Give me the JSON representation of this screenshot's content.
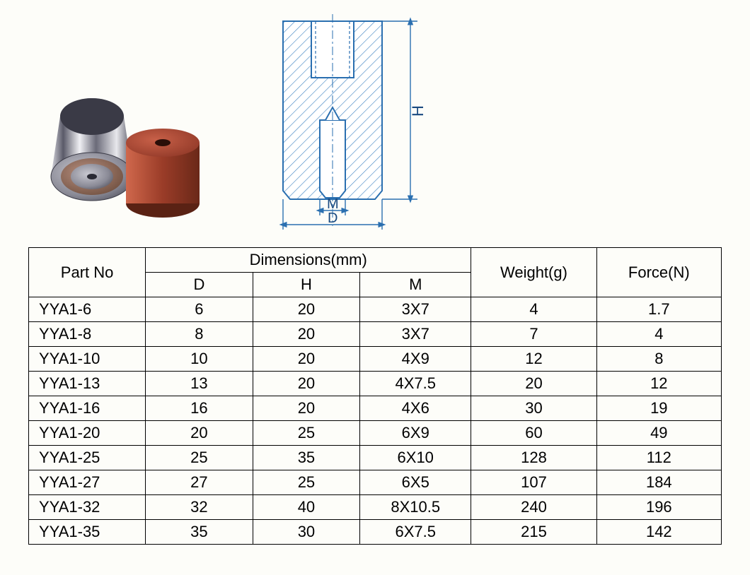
{
  "diagram": {
    "labels": {
      "H": "H",
      "M": "M",
      "D": "D"
    },
    "colors": {
      "outline": "#2a6fb0",
      "hatch": "#3a80c0",
      "fill_light": "#e8f0f8",
      "dim_line": "#2a6fb0"
    }
  },
  "photo": {
    "colors": {
      "steel_light": "#e8e8ec",
      "steel_dark": "#4a4a58",
      "steel_face": "#a0a0ac",
      "red_light": "#c05038",
      "red_dark": "#8a3424",
      "red_hole": "#3a1812"
    }
  },
  "table": {
    "headers": {
      "part": "Part No",
      "dims": "Dimensions(mm)",
      "D": "D",
      "H": "H",
      "M": "M",
      "weight": "Weight(g)",
      "force": "Force(N)"
    },
    "rows": [
      {
        "part": "YYA1-6",
        "D": "6",
        "H": "20",
        "M": "3X7",
        "weight": "4",
        "force": "1.7"
      },
      {
        "part": "YYA1-8",
        "D": "8",
        "H": "20",
        "M": "3X7",
        "weight": "7",
        "force": "4"
      },
      {
        "part": "YYA1-10",
        "D": "10",
        "H": "20",
        "M": "4X9",
        "weight": "12",
        "force": "8"
      },
      {
        "part": "YYA1-13",
        "D": "13",
        "H": "20",
        "M": "4X7.5",
        "weight": "20",
        "force": "12"
      },
      {
        "part": "YYA1-16",
        "D": "16",
        "H": "20",
        "M": "4X6",
        "weight": "30",
        "force": "19"
      },
      {
        "part": "YYA1-20",
        "D": "20",
        "H": "25",
        "M": "6X9",
        "weight": "60",
        "force": "49"
      },
      {
        "part": "YYA1-25",
        "D": "25",
        "H": "35",
        "M": "6X10",
        "weight": "128",
        "force": "112"
      },
      {
        "part": "YYA1-27",
        "D": "27",
        "H": "25",
        "M": "6X5",
        "weight": "107",
        "force": "184"
      },
      {
        "part": "YYA1-32",
        "D": "32",
        "H": "40",
        "M": "8X10.5",
        "weight": "240",
        "force": "196"
      },
      {
        "part": "YYA1-35",
        "D": "35",
        "H": "30",
        "M": "6X7.5",
        "weight": "215",
        "force": "142"
      }
    ]
  }
}
